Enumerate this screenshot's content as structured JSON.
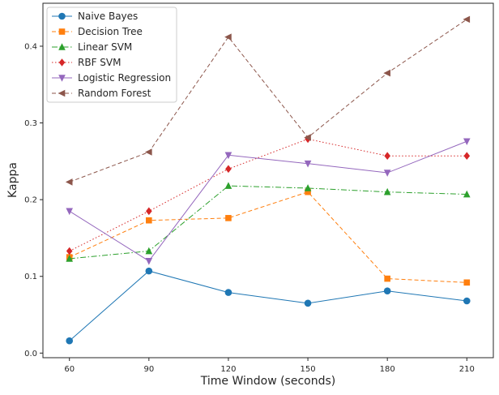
{
  "chart_data": {
    "type": "line",
    "title": "",
    "xlabel": "Time Window (seconds)",
    "ylabel": "Kappa",
    "x": [
      60,
      90,
      120,
      150,
      180,
      210
    ],
    "xlim": [
      50,
      220
    ],
    "ylim": [
      -0.006,
      0.456
    ],
    "yticks": [
      0.0,
      0.1,
      0.2,
      0.3,
      0.4
    ],
    "ytick_labels": [
      "0.0",
      "0.1",
      "0.2",
      "0.3",
      "0.4"
    ],
    "xtick_labels": [
      "60",
      "90",
      "120",
      "150",
      "180",
      "210"
    ],
    "grid": false,
    "legend_position": "top-left",
    "series": [
      {
        "name": "Naive Bayes",
        "color": "#1f77b4",
        "dash": "solid",
        "marker": "circle",
        "values": [
          0.016,
          0.107,
          0.079,
          0.065,
          0.081,
          0.068
        ]
      },
      {
        "name": "Decision Tree",
        "color": "#ff7f0e",
        "dash": "dashed",
        "marker": "square",
        "values": [
          0.125,
          0.173,
          0.176,
          0.21,
          0.097,
          0.092
        ]
      },
      {
        "name": "Linear SVM",
        "color": "#2ca02c",
        "dash": "dashdot",
        "marker": "triangle-up",
        "values": [
          0.123,
          0.133,
          0.218,
          0.215,
          0.21,
          0.207
        ]
      },
      {
        "name": "RBF SVM",
        "color": "#d62728",
        "dash": "dotted",
        "marker": "diamond",
        "values": [
          0.133,
          0.185,
          0.24,
          0.279,
          0.257,
          0.257
        ]
      },
      {
        "name": "Logistic Regression",
        "color": "#9467bd",
        "dash": "solid",
        "marker": "triangle-down",
        "values": [
          0.185,
          0.12,
          0.258,
          0.247,
          0.235,
          0.276
        ]
      },
      {
        "name": "Random Forest",
        "color": "#8c564b",
        "dash": "dashed",
        "marker": "triangle-left",
        "values": [
          0.223,
          0.262,
          0.412,
          0.281,
          0.365,
          0.435
        ]
      }
    ]
  }
}
